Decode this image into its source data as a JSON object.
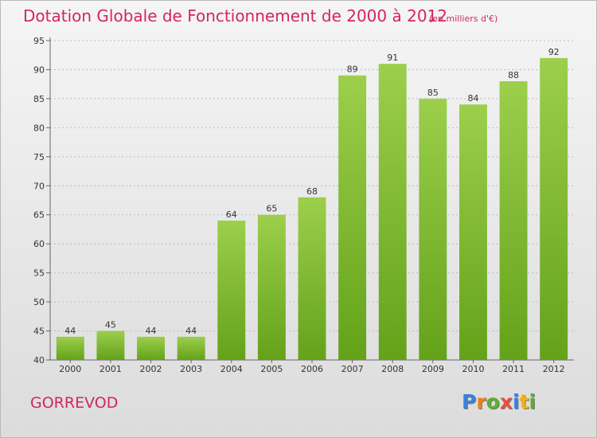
{
  "title": "Dotation Globale de Fonctionnement de 2000 à 2012",
  "unit_note": "(en milliers d'€)",
  "commune": "GORREVOD",
  "logo": {
    "letters": [
      "P",
      "r",
      "o",
      "x",
      "i",
      "t",
      "i"
    ],
    "colors": [
      "#3d7fd8",
      "#ef7f1a",
      "#58b030",
      "#e94e3a",
      "#3d7fd8",
      "#f2b216",
      "#58b030"
    ]
  },
  "colors": {
    "title": "#d2275b",
    "bar_top": "#9ccf4c",
    "bar_bottom": "#64a21a",
    "grid": "#bdbdbd"
  },
  "chart_data": {
    "type": "bar",
    "categories": [
      "2000",
      "2001",
      "2002",
      "2003",
      "2004",
      "2005",
      "2006",
      "2007",
      "2008",
      "2009",
      "2010",
      "2011",
      "2012"
    ],
    "values": [
      44,
      45,
      44,
      44,
      64,
      65,
      68,
      89,
      91,
      85,
      84,
      88,
      92
    ],
    "ylim": [
      40,
      95
    ],
    "yticks": [
      40,
      45,
      50,
      55,
      60,
      65,
      70,
      75,
      80,
      85,
      90,
      95
    ],
    "grid": true,
    "data_labels": true
  }
}
